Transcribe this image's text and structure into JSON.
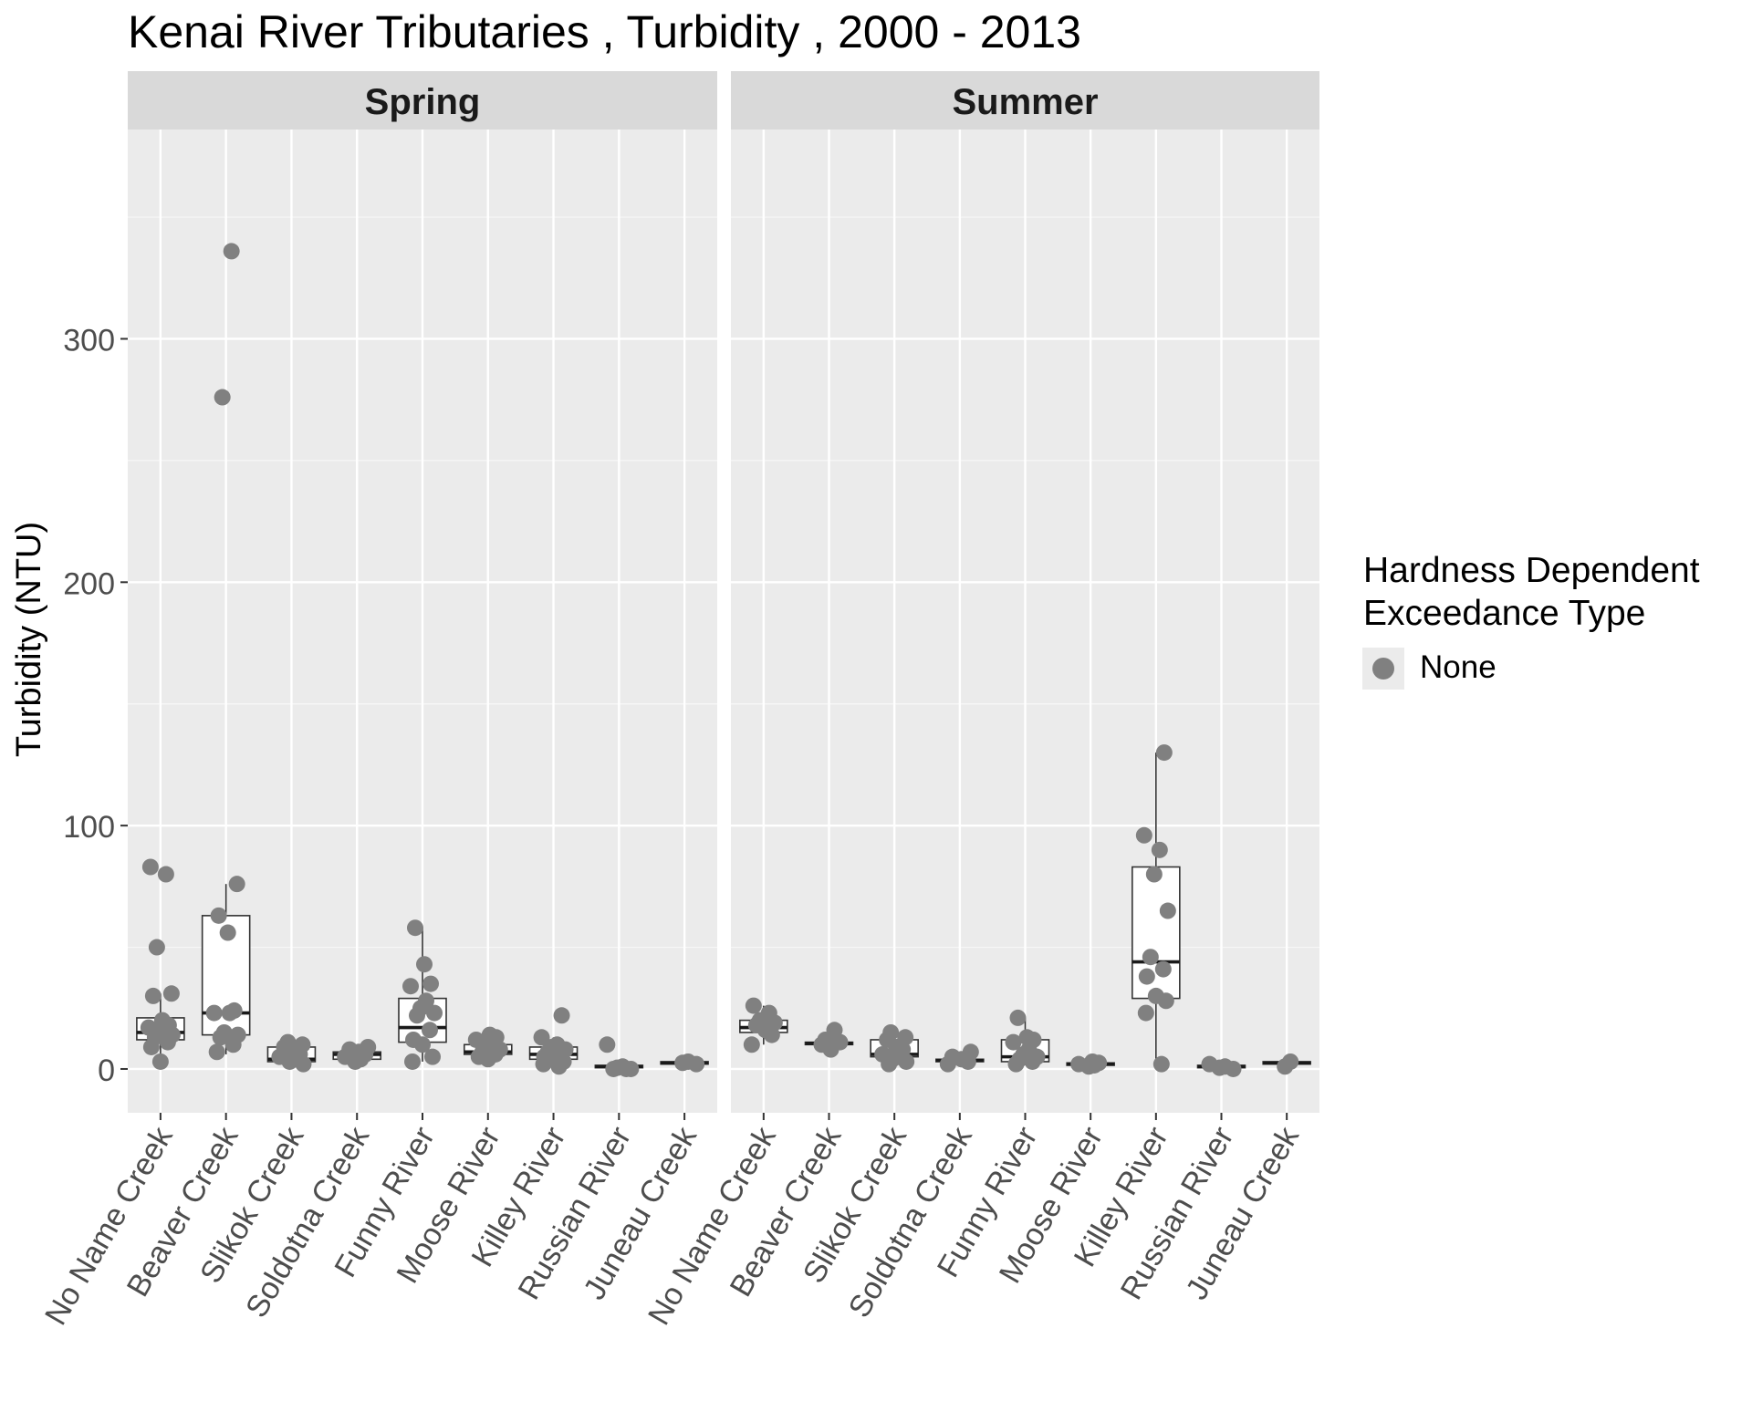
{
  "chart_data": {
    "type": "boxplot-with-jittered-points",
    "title": "Kenai River Tributaries , Turbidity , 2000 - 2013",
    "ylabel": "Turbidity (NTU)",
    "xlabel": "",
    "ylim": [
      -18,
      386
    ],
    "yticks": [
      0,
      100,
      200,
      300
    ],
    "grid": true,
    "point_color": "#808080",
    "panel_background": "#ebebeb",
    "strip_background": "#d9d9d9",
    "legend": {
      "title": "Hardness Dependent\nExceedance Type",
      "entries": [
        "None"
      ],
      "placement": "right"
    },
    "categories": [
      "No Name Creek",
      "Beaver Creek",
      "Slikok Creek",
      "Soldotna Creek",
      "Funny River",
      "Moose River",
      "Killey River",
      "Russian River",
      "Juneau Creek"
    ],
    "panels": [
      {
        "name": "Spring",
        "boxes": [
          {
            "category": "No Name Creek",
            "q1": 12,
            "median": 15,
            "q3": 21,
            "whisker_low": 3,
            "whisker_high": 31
          },
          {
            "category": "Beaver Creek",
            "q1": 14,
            "median": 23,
            "q3": 63,
            "whisker_low": 6,
            "whisker_high": 76
          },
          {
            "category": "Slikok Creek",
            "q1": 3,
            "median": 4,
            "q3": 9,
            "whisker_low": 2,
            "whisker_high": 11
          },
          {
            "category": "Soldotna Creek",
            "q1": 4,
            "median": 6,
            "q3": 7,
            "whisker_low": 3,
            "whisker_high": 9
          },
          {
            "category": "Funny River",
            "q1": 11,
            "median": 17,
            "q3": 29,
            "whisker_low": 3,
            "whisker_high": 58
          },
          {
            "category": "Moose River",
            "q1": 6,
            "median": 7,
            "q3": 10,
            "whisker_low": 4,
            "whisker_high": 14
          },
          {
            "category": "Killey River",
            "q1": 4,
            "median": 6,
            "q3": 9,
            "whisker_low": 1,
            "whisker_high": 13
          },
          {
            "category": "Russian River",
            "q1": 0.5,
            "median": 1,
            "q3": 1.5,
            "whisker_low": 0,
            "whisker_high": 2
          },
          {
            "category": "Juneau Creek",
            "q1": 2,
            "median": 2.5,
            "q3": 3,
            "whisker_low": 2,
            "whisker_high": 3
          }
        ],
        "points": [
          {
            "category": "No Name Creek",
            "values": [
              83,
              80,
              50,
              31,
              30,
              20,
              18,
              17,
              16,
              15,
              14,
              13,
              11,
              9,
              3
            ]
          },
          {
            "category": "Beaver Creek",
            "values": [
              336,
              276,
              76,
              63,
              56,
              24,
              23,
              23,
              15,
              14,
              13,
              10,
              7
            ]
          },
          {
            "category": "Slikok Creek",
            "values": [
              11,
              10,
              9,
              8,
              6,
              5,
              4,
              3,
              2
            ]
          },
          {
            "category": "Soldotna Creek",
            "values": [
              9,
              8,
              7,
              6,
              5,
              4,
              3
            ]
          },
          {
            "category": "Funny River",
            "values": [
              58,
              43,
              35,
              34,
              28,
              25,
              23,
              22,
              16,
              12,
              10,
              5,
              3
            ]
          },
          {
            "category": "Moose River",
            "values": [
              14,
              13,
              12,
              10,
              9,
              8,
              7,
              6,
              5,
              4
            ]
          },
          {
            "category": "Killey River",
            "values": [
              22,
              13,
              10,
              9,
              8,
              7,
              6,
              5,
              4,
              3,
              2,
              1
            ]
          },
          {
            "category": "Russian River",
            "values": [
              10,
              1,
              0.5,
              0,
              0,
              0
            ]
          },
          {
            "category": "Juneau Creek",
            "values": [
              3,
              2.5,
              2
            ]
          }
        ]
      },
      {
        "name": "Summer",
        "boxes": [
          {
            "category": "No Name Creek",
            "q1": 15,
            "median": 17,
            "q3": 20,
            "whisker_low": 10,
            "whisker_high": 26
          },
          {
            "category": "Beaver Creek",
            "q1": 10,
            "median": 10.5,
            "q3": 11,
            "whisker_low": 8,
            "whisker_high": 16
          },
          {
            "category": "Slikok Creek",
            "q1": 5,
            "median": 6,
            "q3": 12,
            "whisker_low": 2,
            "whisker_high": 15
          },
          {
            "category": "Soldotna Creek",
            "q1": 3,
            "median": 3.5,
            "q3": 4,
            "whisker_low": 2,
            "whisker_high": 7
          },
          {
            "category": "Funny River",
            "q1": 3,
            "median": 5,
            "q3": 12,
            "whisker_low": 2,
            "whisker_high": 21
          },
          {
            "category": "Moose River",
            "q1": 1.5,
            "median": 2,
            "q3": 2.5,
            "whisker_low": 1,
            "whisker_high": 3
          },
          {
            "category": "Killey River",
            "q1": 29,
            "median": 44,
            "q3": 83,
            "whisker_low": 2,
            "whisker_high": 130
          },
          {
            "category": "Russian River",
            "q1": 0.5,
            "median": 1,
            "q3": 1.5,
            "whisker_low": 0,
            "whisker_high": 2
          },
          {
            "category": "Juneau Creek",
            "q1": 2,
            "median": 2.5,
            "q3": 3,
            "whisker_low": 1,
            "whisker_high": 3
          }
        ],
        "points": [
          {
            "category": "No Name Creek",
            "values": [
              26,
              23,
              20,
              19,
              18,
              16,
              14,
              10
            ]
          },
          {
            "category": "Beaver Creek",
            "values": [
              16,
              12,
              11,
              10,
              8
            ]
          },
          {
            "category": "Slikok Creek",
            "values": [
              15,
              13,
              12,
              9,
              8,
              6,
              5,
              4,
              3,
              2
            ]
          },
          {
            "category": "Soldotna Creek",
            "values": [
              7,
              5,
              4,
              3,
              2
            ]
          },
          {
            "category": "Funny River",
            "values": [
              21,
              13,
              12,
              11,
              8,
              6,
              5,
              4,
              3,
              2
            ]
          },
          {
            "category": "Moose River",
            "values": [
              3,
              2.5,
              2,
              1.5,
              1
            ]
          },
          {
            "category": "Killey River",
            "values": [
              130,
              96,
              90,
              80,
              65,
              46,
              41,
              38,
              30,
              28,
              23,
              2
            ]
          },
          {
            "category": "Russian River",
            "values": [
              2,
              1,
              0.5,
              0
            ]
          },
          {
            "category": "Juneau Creek",
            "values": [
              3,
              1
            ]
          }
        ]
      }
    ]
  }
}
